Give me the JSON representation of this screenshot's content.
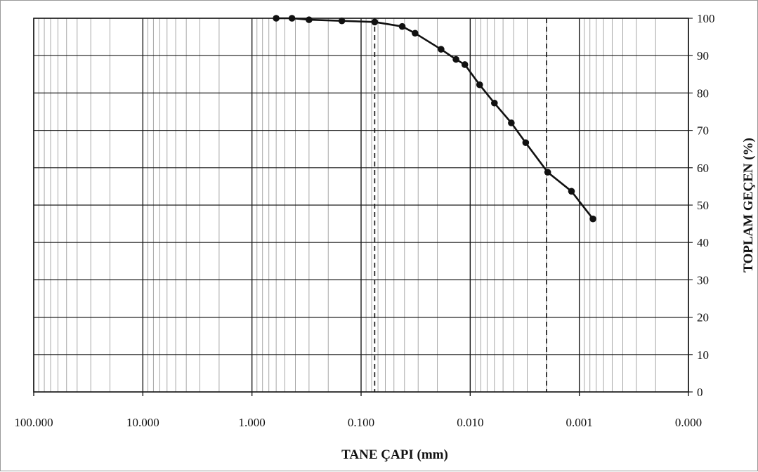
{
  "chart_data": {
    "type": "line",
    "title": "",
    "xlabel": "TANE ÇAPI (mm)",
    "ylabel": "TOPLAM GEÇEN (%)",
    "x_scale": "log",
    "x_reversed": true,
    "xlim": [
      100,
      0.0001
    ],
    "ylim": [
      0,
      100
    ],
    "x_tick_labels": [
      "100.000",
      "10.000",
      "1.000",
      "0.100",
      "0.010",
      "0.001",
      "0.000"
    ],
    "y_tick_labels": [
      "0",
      "10",
      "20",
      "30",
      "40",
      "50",
      "60",
      "70",
      "80",
      "90",
      "100"
    ],
    "y_axis_position": "right",
    "grid": true,
    "reference_lines_x": [
      0.075,
      0.002
    ],
    "series": [
      {
        "marker": "circle",
        "x": [
          0.6,
          0.43,
          0.3,
          0.15,
          0.075,
          0.042,
          0.032,
          0.0185,
          0.0135,
          0.0112,
          0.0082,
          0.006,
          0.0042,
          0.0031,
          0.00195,
          0.00118,
          0.00075
        ],
        "y": [
          100,
          100,
          99.6,
          99.3,
          99,
          97.8,
          96,
          91.7,
          89,
          87.6,
          82.2,
          77.3,
          72,
          66.7,
          58.8,
          53.7,
          46.3
        ]
      }
    ]
  }
}
